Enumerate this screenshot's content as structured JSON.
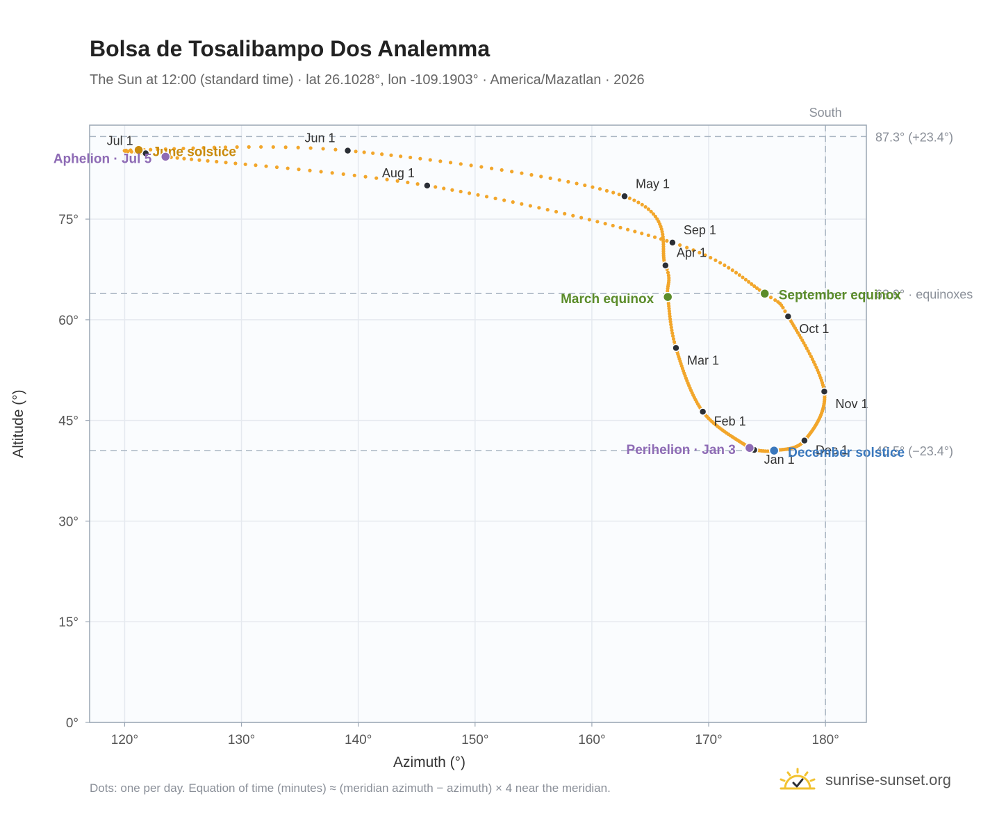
{
  "title": "Bolsa de Tosalibampo Dos Analemma",
  "subtitle": "The Sun at 12:00 (standard time) · lat 26.1028°, lon -109.1903° · America/Mazatlan · 2026",
  "footnote": "Dots: one per day. Equation of time (minutes) ≈ (meridian azimuth − azimuth) × 4 near the meridian.",
  "brand": {
    "text": "sunrise-sunset.org",
    "icon": "sun-icon"
  },
  "colors": {
    "path": "#f2a62b",
    "month_marker": "#2b2f36",
    "equinox": "#5b8c2a",
    "solstice_june": "#c98a0c",
    "solstice_december": "#3a78bd",
    "apsis": "#8e6bb5",
    "grid": "#e5e9ef",
    "plot_bg": "#fafcfe",
    "refline": "#a9b5c2"
  },
  "chart_data": {
    "type": "scatter",
    "xlabel": "Azimuth (°)",
    "ylabel": "Altitude (°)",
    "xlim": [
      117,
      183.5
    ],
    "ylim": [
      0,
      89
    ],
    "x_ticks": [
      120,
      130,
      140,
      150,
      160,
      170,
      180
    ],
    "x_tick_labels": [
      "120°",
      "130°",
      "140°",
      "150°",
      "160°",
      "170°",
      "180°"
    ],
    "y_ticks": [
      0,
      15,
      30,
      45,
      60,
      75
    ],
    "y_tick_labels": [
      "0°",
      "15°",
      "30°",
      "45°",
      "60°",
      "75°"
    ],
    "grid": true,
    "meridian": {
      "azimuth": 180,
      "label": "South"
    },
    "reference_lines": [
      {
        "altitude": 87.3,
        "label": "87.3° (+23.4°)"
      },
      {
        "altitude": 63.9,
        "label": "63.9° · equinoxes"
      },
      {
        "altitude": 40.5,
        "label": "40.5° (−23.4°)"
      }
    ],
    "month_markers": [
      {
        "label": "Jan 1",
        "azimuth": 173.9,
        "altitude": 40.6
      },
      {
        "label": "Feb 1",
        "azimuth": 169.5,
        "altitude": 46.3
      },
      {
        "label": "Mar 1",
        "azimuth": 167.2,
        "altitude": 55.8
      },
      {
        "label": "Apr 1",
        "azimuth": 166.3,
        "altitude": 68.1
      },
      {
        "label": "May 1",
        "azimuth": 162.8,
        "altitude": 78.4
      },
      {
        "label": "Jun 1",
        "azimuth": 139.1,
        "altitude": 85.2
      },
      {
        "label": "Jul 1",
        "azimuth": 121.8,
        "altitude": 84.8
      },
      {
        "label": "Aug 1",
        "azimuth": 145.9,
        "altitude": 80.0
      },
      {
        "label": "Sep 1",
        "azimuth": 166.9,
        "altitude": 71.5
      },
      {
        "label": "Oct 1",
        "azimuth": 176.8,
        "altitude": 60.5
      },
      {
        "label": "Nov 1",
        "azimuth": 179.9,
        "altitude": 49.3
      },
      {
        "label": "Dec 1",
        "azimuth": 178.2,
        "altitude": 42.0
      }
    ],
    "events": [
      {
        "label": "March equinox",
        "azimuth": 166.5,
        "altitude": 63.4,
        "kind": "equinox"
      },
      {
        "label": "September equinox",
        "azimuth": 174.8,
        "altitude": 63.9,
        "kind": "equinox"
      },
      {
        "label": "June solstice",
        "azimuth": 121.2,
        "altitude": 85.3,
        "kind": "solstice_june"
      },
      {
        "label": "December solstice",
        "azimuth": 175.6,
        "altitude": 40.5,
        "kind": "solstice_december"
      },
      {
        "label": "Aphelion · Jul 5",
        "azimuth": 123.5,
        "altitude": 84.3,
        "kind": "apsis"
      },
      {
        "label": "Perihelion · Jan 3",
        "azimuth": 173.5,
        "altitude": 40.9,
        "kind": "apsis"
      }
    ]
  }
}
